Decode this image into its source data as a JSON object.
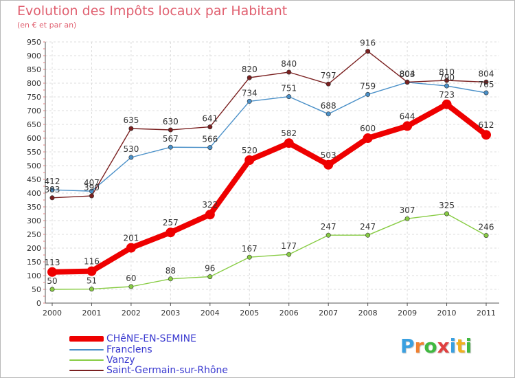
{
  "title": "Evolution des Impôts locaux par Habitant",
  "subtitle": "(en € et par an)",
  "logo": {
    "text": "Proxiti",
    "letter_colors": [
      "#3aa0e0",
      "#f08030",
      "#40b840",
      "#e04040",
      "#3aa0e0",
      "#f0b020",
      "#40b840"
    ]
  },
  "chart_data": {
    "type": "line",
    "title": "Evolution des Impôts locaux par Habitant",
    "subtitle": "(en € et par an)",
    "xlabel": "",
    "ylabel": "",
    "x": [
      "2000",
      "2001",
      "2002",
      "2003",
      "2004",
      "2005",
      "2006",
      "2007",
      "2008",
      "2009",
      "2010",
      "2011"
    ],
    "ylim": [
      0,
      950
    ],
    "yticks": [
      0,
      50,
      100,
      150,
      200,
      250,
      300,
      350,
      400,
      450,
      500,
      550,
      600,
      650,
      700,
      750,
      800,
      850,
      900,
      950
    ],
    "grid": true,
    "legend_position": "bottom-left",
    "series": [
      {
        "name": "CHêNE-EN-SEMINE",
        "color": "#ee0000",
        "values": [
          113,
          116,
          201,
          257,
          322,
          520,
          582,
          503,
          600,
          644,
          723,
          612
        ],
        "labels": [
          "113",
          "116",
          "201",
          "257",
          "322",
          "520",
          "582",
          "503",
          "600",
          "644",
          "723",
          "612"
        ]
      },
      {
        "name": "Franclens",
        "color": "#4a90c8",
        "values": [
          412,
          407,
          530,
          567,
          566,
          734,
          751,
          688,
          759,
          803,
          790,
          765
        ],
        "labels": [
          "412",
          "407",
          "530",
          "567",
          "566",
          "734",
          "751",
          "688",
          "759",
          "803",
          "790",
          "765"
        ]
      },
      {
        "name": "Vanzy",
        "color": "#88cc44",
        "values": [
          50,
          51,
          60,
          88,
          96,
          167,
          177,
          247,
          247,
          307,
          325,
          246
        ],
        "labels": [
          "50",
          "51",
          "60",
          "88",
          "96",
          "167",
          "177",
          "247",
          "247",
          "307",
          "325",
          "246"
        ]
      },
      {
        "name": "Saint-Germain-sur-Rhône",
        "color": "#7a2020",
        "values": [
          383,
          390,
          635,
          630,
          641,
          820,
          840,
          797,
          916,
          804,
          810,
          804
        ],
        "labels": [
          "383",
          "390",
          "635",
          "630",
          "641",
          "820",
          "840",
          "797",
          "916",
          "804",
          "810",
          "804"
        ]
      }
    ]
  }
}
